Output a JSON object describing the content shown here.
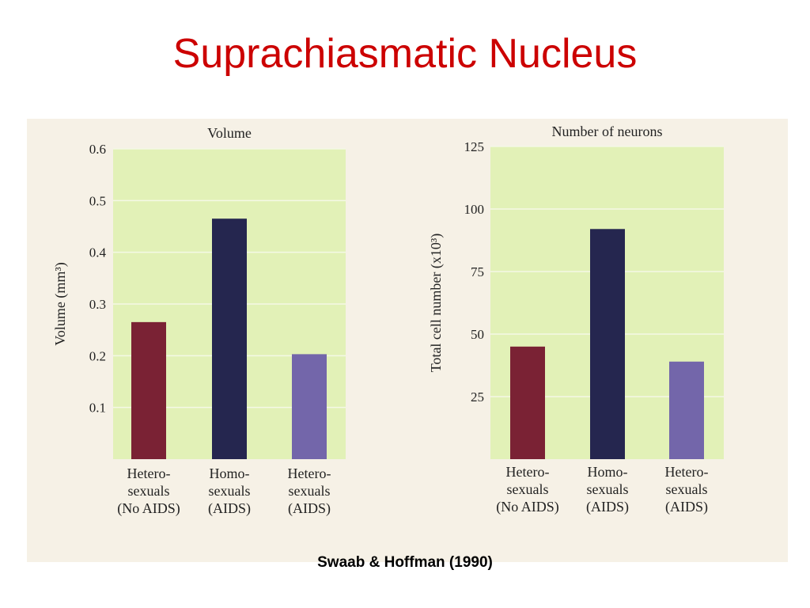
{
  "slide": {
    "title": "Suprachiasmatic Nucleus",
    "citation": "Swaab & Hoffman (1990)"
  },
  "colors": {
    "title": "#cc0000",
    "panel": "#e2f1b7",
    "grid": "#f4f8e6",
    "bars": [
      "#7a2234",
      "#25264f",
      "#7366aa"
    ]
  },
  "chart_data": [
    {
      "type": "bar",
      "title": "Volume",
      "ylabel": "Volume (mm³)",
      "ylim": [
        0,
        0.6
      ],
      "yticks": [
        "0.1",
        "0.2",
        "0.3",
        "0.4",
        "0.5",
        "0.6"
      ],
      "grid": true,
      "categories": [
        [
          "Hetero-",
          "sexuals",
          "(No AIDS)"
        ],
        [
          "Homo-",
          "sexuals",
          "(AIDS)"
        ],
        [
          "Hetero-",
          "sexuals",
          "(AIDS)"
        ]
      ],
      "values": [
        0.265,
        0.465,
        0.203
      ]
    },
    {
      "type": "bar",
      "title": "Number of neurons",
      "ylabel": "Total cell number (x10³)",
      "ylim": [
        0,
        125
      ],
      "yticks": [
        "25",
        "50",
        "75",
        "100",
        "125"
      ],
      "grid": true,
      "categories": [
        [
          "Hetero-",
          "sexuals",
          "(No AIDS)"
        ],
        [
          "Homo-",
          "sexuals",
          "(AIDS)"
        ],
        [
          "Hetero-",
          "sexuals",
          "(AIDS)"
        ]
      ],
      "values": [
        45,
        92,
        39
      ]
    }
  ]
}
